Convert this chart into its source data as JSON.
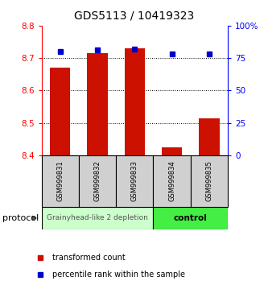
{
  "title": "GDS5113 / 10419323",
  "samples": [
    "GSM999831",
    "GSM999832",
    "GSM999833",
    "GSM999834",
    "GSM999835"
  ],
  "bar_values": [
    8.67,
    8.715,
    8.73,
    8.425,
    8.515
  ],
  "percentile_values": [
    80,
    81,
    82,
    78,
    78
  ],
  "bar_color": "#cc1100",
  "percentile_color": "#0000cc",
  "ylim_left": [
    8.4,
    8.8
  ],
  "ylim_right": [
    0,
    100
  ],
  "yticks_left": [
    8.4,
    8.5,
    8.6,
    8.7,
    8.8
  ],
  "yticks_right": [
    0,
    25,
    50,
    75,
    100
  ],
  "ytick_labels_right": [
    "0",
    "25",
    "50",
    "75",
    "100%"
  ],
  "grid_lines": [
    8.5,
    8.6,
    8.7
  ],
  "group1_indices": [
    0,
    1,
    2
  ],
  "group2_indices": [
    3,
    4
  ],
  "group1_label": "Grainyhead-like 2 depletion",
  "group2_label": "control",
  "group1_color": "#ccffcc",
  "group2_color": "#44ee44",
  "protocol_label": "protocol",
  "legend_bar_label": "transformed count",
  "legend_pct_label": "percentile rank within the sample",
  "bar_bottom": 8.4,
  "bar_width": 0.55,
  "background_color": "#ffffff",
  "title_fontsize": 10,
  "tick_fontsize": 7.5,
  "sample_fontsize": 6,
  "legend_fontsize": 7,
  "group_fontsize": 6.5
}
